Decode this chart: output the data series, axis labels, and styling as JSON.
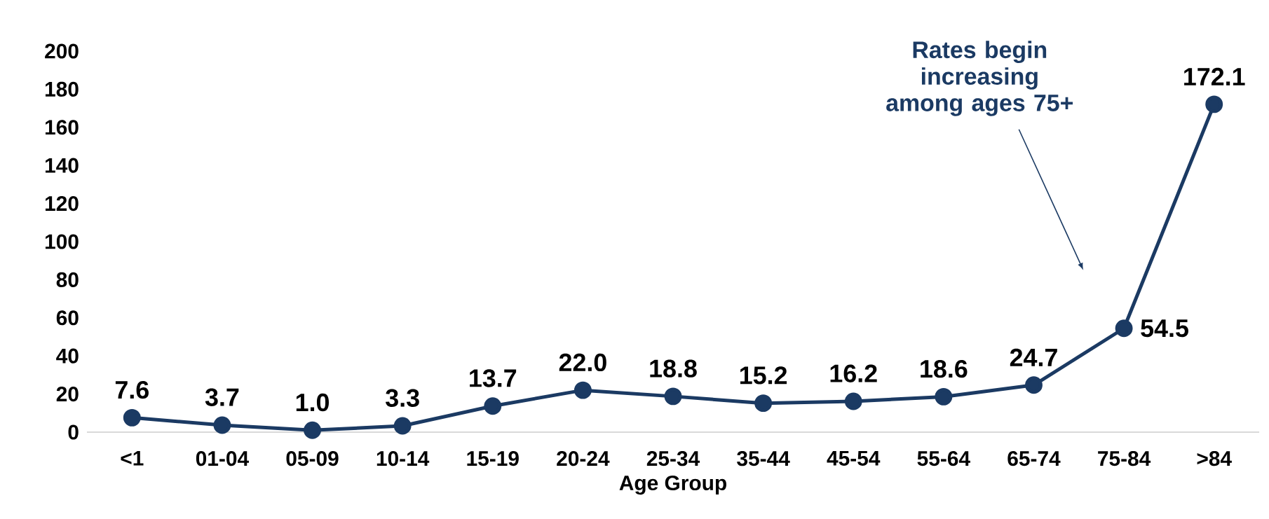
{
  "chart_data": {
    "type": "line",
    "xlabel": "Age Group",
    "categories": [
      "<1",
      "01-04",
      "05-09",
      "10-14",
      "15-19",
      "20-24",
      "25-34",
      "35-44",
      "45-54",
      "55-64",
      "65-74",
      "75-84",
      ">84"
    ],
    "series": [
      {
        "color": "#1b3a63",
        "values": [
          7.6,
          3.7,
          1.0,
          3.3,
          13.7,
          22.0,
          18.8,
          15.2,
          16.2,
          18.6,
          24.7,
          54.5,
          172.1
        ],
        "value_labels": [
          "7.6",
          "3.7",
          "1.0",
          "3.3",
          "13.7",
          "22.0",
          "18.8",
          "15.2",
          "16.2",
          "18.6",
          "24.7",
          "54.5",
          "172.1"
        ]
      }
    ],
    "ylim": [
      0,
      200
    ],
    "yticks": [
      0,
      20,
      40,
      60,
      80,
      100,
      120,
      140,
      160,
      180,
      200
    ],
    "marker": "circle",
    "line_style": "solid",
    "grid": false,
    "annotations": [
      "Rates begin increasing among ages 75+"
    ]
  }
}
